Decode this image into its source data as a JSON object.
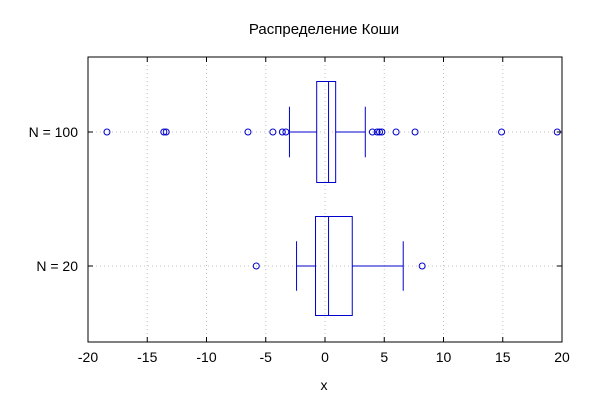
{
  "chart_data": {
    "type": "boxplot",
    "orientation": "horizontal",
    "title": "Распределение Коши",
    "xlabel": "x",
    "ylabel": "",
    "xlim": [
      -20,
      20
    ],
    "xticks": [
      -20,
      -15,
      -10,
      -5,
      0,
      5,
      10,
      15,
      20
    ],
    "grid": true,
    "categories": [
      "N = 100",
      "N = 20"
    ],
    "series": [
      {
        "category": "N = 100",
        "whisker_low": -3.0,
        "q1": -0.7,
        "median": 0.3,
        "q3": 0.9,
        "whisker_high": 3.4,
        "outliers": [
          -18.4,
          -13.6,
          -13.4,
          -6.5,
          -4.4,
          -3.6,
          -3.3,
          4.0,
          4.4,
          4.6,
          4.8,
          6.0,
          7.6,
          14.9,
          19.6
        ]
      },
      {
        "category": "N = 20",
        "whisker_low": -2.4,
        "q1": -0.8,
        "median": 0.3,
        "q3": 2.3,
        "whisker_high": 6.6,
        "outliers": [
          -5.8,
          8.2
        ]
      }
    ],
    "colors": {
      "box": "#0000cc",
      "grid": "#c0c0c0",
      "frame": "#000000"
    }
  }
}
